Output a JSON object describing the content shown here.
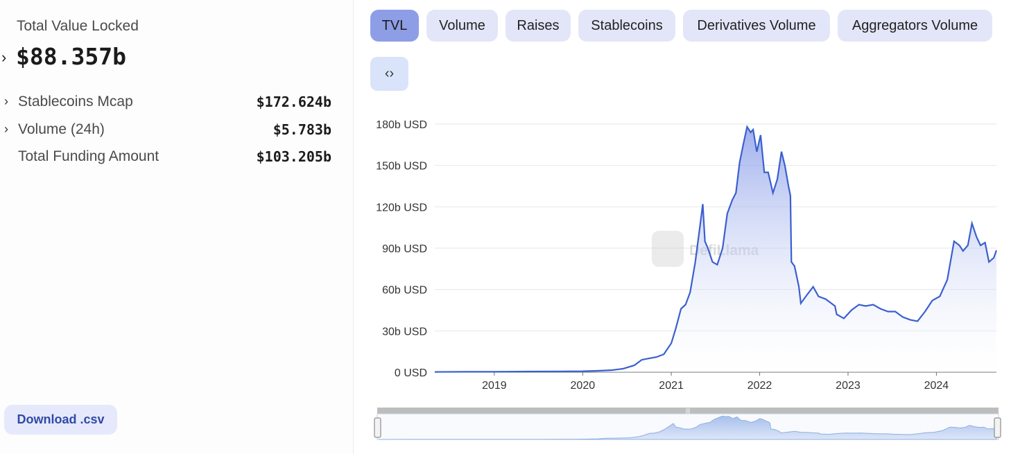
{
  "summary": {
    "tvl_label": "Total Value Locked",
    "tvl_value": "$88.357b",
    "metrics": [
      {
        "label": "Stablecoins Mcap",
        "value": "$172.624b",
        "expandable": true
      },
      {
        "label": "Volume (24h)",
        "value": "$5.783b",
        "expandable": true
      },
      {
        "label": "Total Funding Amount",
        "value": "$103.205b",
        "expandable": false
      }
    ],
    "download_label": "Download .csv"
  },
  "tabs": [
    {
      "label": "TVL",
      "active": true
    },
    {
      "label": "Volume",
      "active": false
    },
    {
      "label": "Raises",
      "active": false
    },
    {
      "label": "Stablecoins",
      "active": false
    },
    {
      "label": "Derivatives Volume",
      "active": false
    },
    {
      "label": "Aggregators Volume",
      "active": false
    }
  ],
  "embed_icon": "code-icon",
  "watermark": "DefiLlama",
  "colors": {
    "line": "#3b5fcf",
    "area_top": "#7f95e6",
    "tab_active": "#8e9ee6",
    "tab": "#e3e6f8"
  },
  "chart_data": {
    "type": "area",
    "title": "",
    "xlabel": "",
    "ylabel": "",
    "y_ticks": [
      "0 USD",
      "30b USD",
      "60b USD",
      "90b USD",
      "120b USD",
      "150b USD",
      "180b USD"
    ],
    "ylim": [
      0,
      180
    ],
    "x_ticks": [
      "2019",
      "2020",
      "2021",
      "2022",
      "2023",
      "2024"
    ],
    "xlim": [
      "2018-04-30",
      "2024-09-05"
    ],
    "grid": true,
    "legend": "none",
    "series": [
      {
        "unit": "b USD",
        "points": [
          [
            "2018-04-30",
            0.2
          ],
          [
            "2018-09-01",
            0.3
          ],
          [
            "2019-01-01",
            0.3
          ],
          [
            "2019-06-01",
            0.5
          ],
          [
            "2019-10-01",
            0.6
          ],
          [
            "2020-01-01",
            0.7
          ],
          [
            "2020-03-01",
            1.0
          ],
          [
            "2020-05-01",
            1.5
          ],
          [
            "2020-06-15",
            2.5
          ],
          [
            "2020-08-01",
            5.0
          ],
          [
            "2020-09-01",
            9.0
          ],
          [
            "2020-10-01",
            10.0
          ],
          [
            "2020-11-01",
            11.0
          ],
          [
            "2020-12-01",
            13.0
          ],
          [
            "2021-01-01",
            21.0
          ],
          [
            "2021-01-20",
            32.0
          ],
          [
            "2021-02-10",
            46.0
          ],
          [
            "2021-03-01",
            49.0
          ],
          [
            "2021-03-20",
            58.0
          ],
          [
            "2021-04-10",
            80.0
          ],
          [
            "2021-05-01",
            108.0
          ],
          [
            "2021-05-11",
            122.0
          ],
          [
            "2021-05-20",
            95.0
          ],
          [
            "2021-06-01",
            90.0
          ],
          [
            "2021-06-20",
            80.0
          ],
          [
            "2021-07-10",
            78.0
          ],
          [
            "2021-08-01",
            90.0
          ],
          [
            "2021-08-20",
            115.0
          ],
          [
            "2021-09-10",
            125.0
          ],
          [
            "2021-09-25",
            130.0
          ],
          [
            "2021-10-10",
            152.0
          ],
          [
            "2021-10-25",
            165.0
          ],
          [
            "2021-11-10",
            178.0
          ],
          [
            "2021-11-25",
            174.0
          ],
          [
            "2021-12-05",
            176.0
          ],
          [
            "2021-12-20",
            160.0
          ],
          [
            "2022-01-05",
            172.0
          ],
          [
            "2022-01-20",
            145.0
          ],
          [
            "2022-02-05",
            145.0
          ],
          [
            "2022-02-25",
            130.0
          ],
          [
            "2022-03-15",
            140.0
          ],
          [
            "2022-04-01",
            160.0
          ],
          [
            "2022-04-15",
            150.0
          ],
          [
            "2022-04-30",
            135.0
          ],
          [
            "2022-05-08",
            128.0
          ],
          [
            "2022-05-12",
            80.0
          ],
          [
            "2022-05-25",
            77.0
          ],
          [
            "2022-06-12",
            62.0
          ],
          [
            "2022-06-20",
            50.0
          ],
          [
            "2022-07-15",
            56.0
          ],
          [
            "2022-08-10",
            62.0
          ],
          [
            "2022-09-01",
            55.0
          ],
          [
            "2022-10-01",
            53.0
          ],
          [
            "2022-11-08",
            48.0
          ],
          [
            "2022-11-15",
            42.0
          ],
          [
            "2022-12-15",
            39.0
          ],
          [
            "2023-01-15",
            45.0
          ],
          [
            "2023-02-15",
            49.0
          ],
          [
            "2023-03-15",
            48.0
          ],
          [
            "2023-04-15",
            49.0
          ],
          [
            "2023-05-15",
            46.0
          ],
          [
            "2023-06-15",
            44.0
          ],
          [
            "2023-07-15",
            44.0
          ],
          [
            "2023-08-15",
            40.0
          ],
          [
            "2023-09-15",
            38.0
          ],
          [
            "2023-10-15",
            37.0
          ],
          [
            "2023-11-15",
            44.0
          ],
          [
            "2023-12-15",
            52.0
          ],
          [
            "2024-01-15",
            55.0
          ],
          [
            "2024-02-15",
            67.0
          ],
          [
            "2024-03-14",
            95.0
          ],
          [
            "2024-04-05",
            92.0
          ],
          [
            "2024-04-20",
            88.0
          ],
          [
            "2024-05-10",
            92.0
          ],
          [
            "2024-05-27",
            108.0
          ],
          [
            "2024-06-15",
            98.0
          ],
          [
            "2024-07-01",
            92.0
          ],
          [
            "2024-07-20",
            94.0
          ],
          [
            "2024-08-05",
            80.0
          ],
          [
            "2024-08-25",
            83.0
          ],
          [
            "2024-09-05",
            88.357
          ]
        ]
      }
    ]
  }
}
